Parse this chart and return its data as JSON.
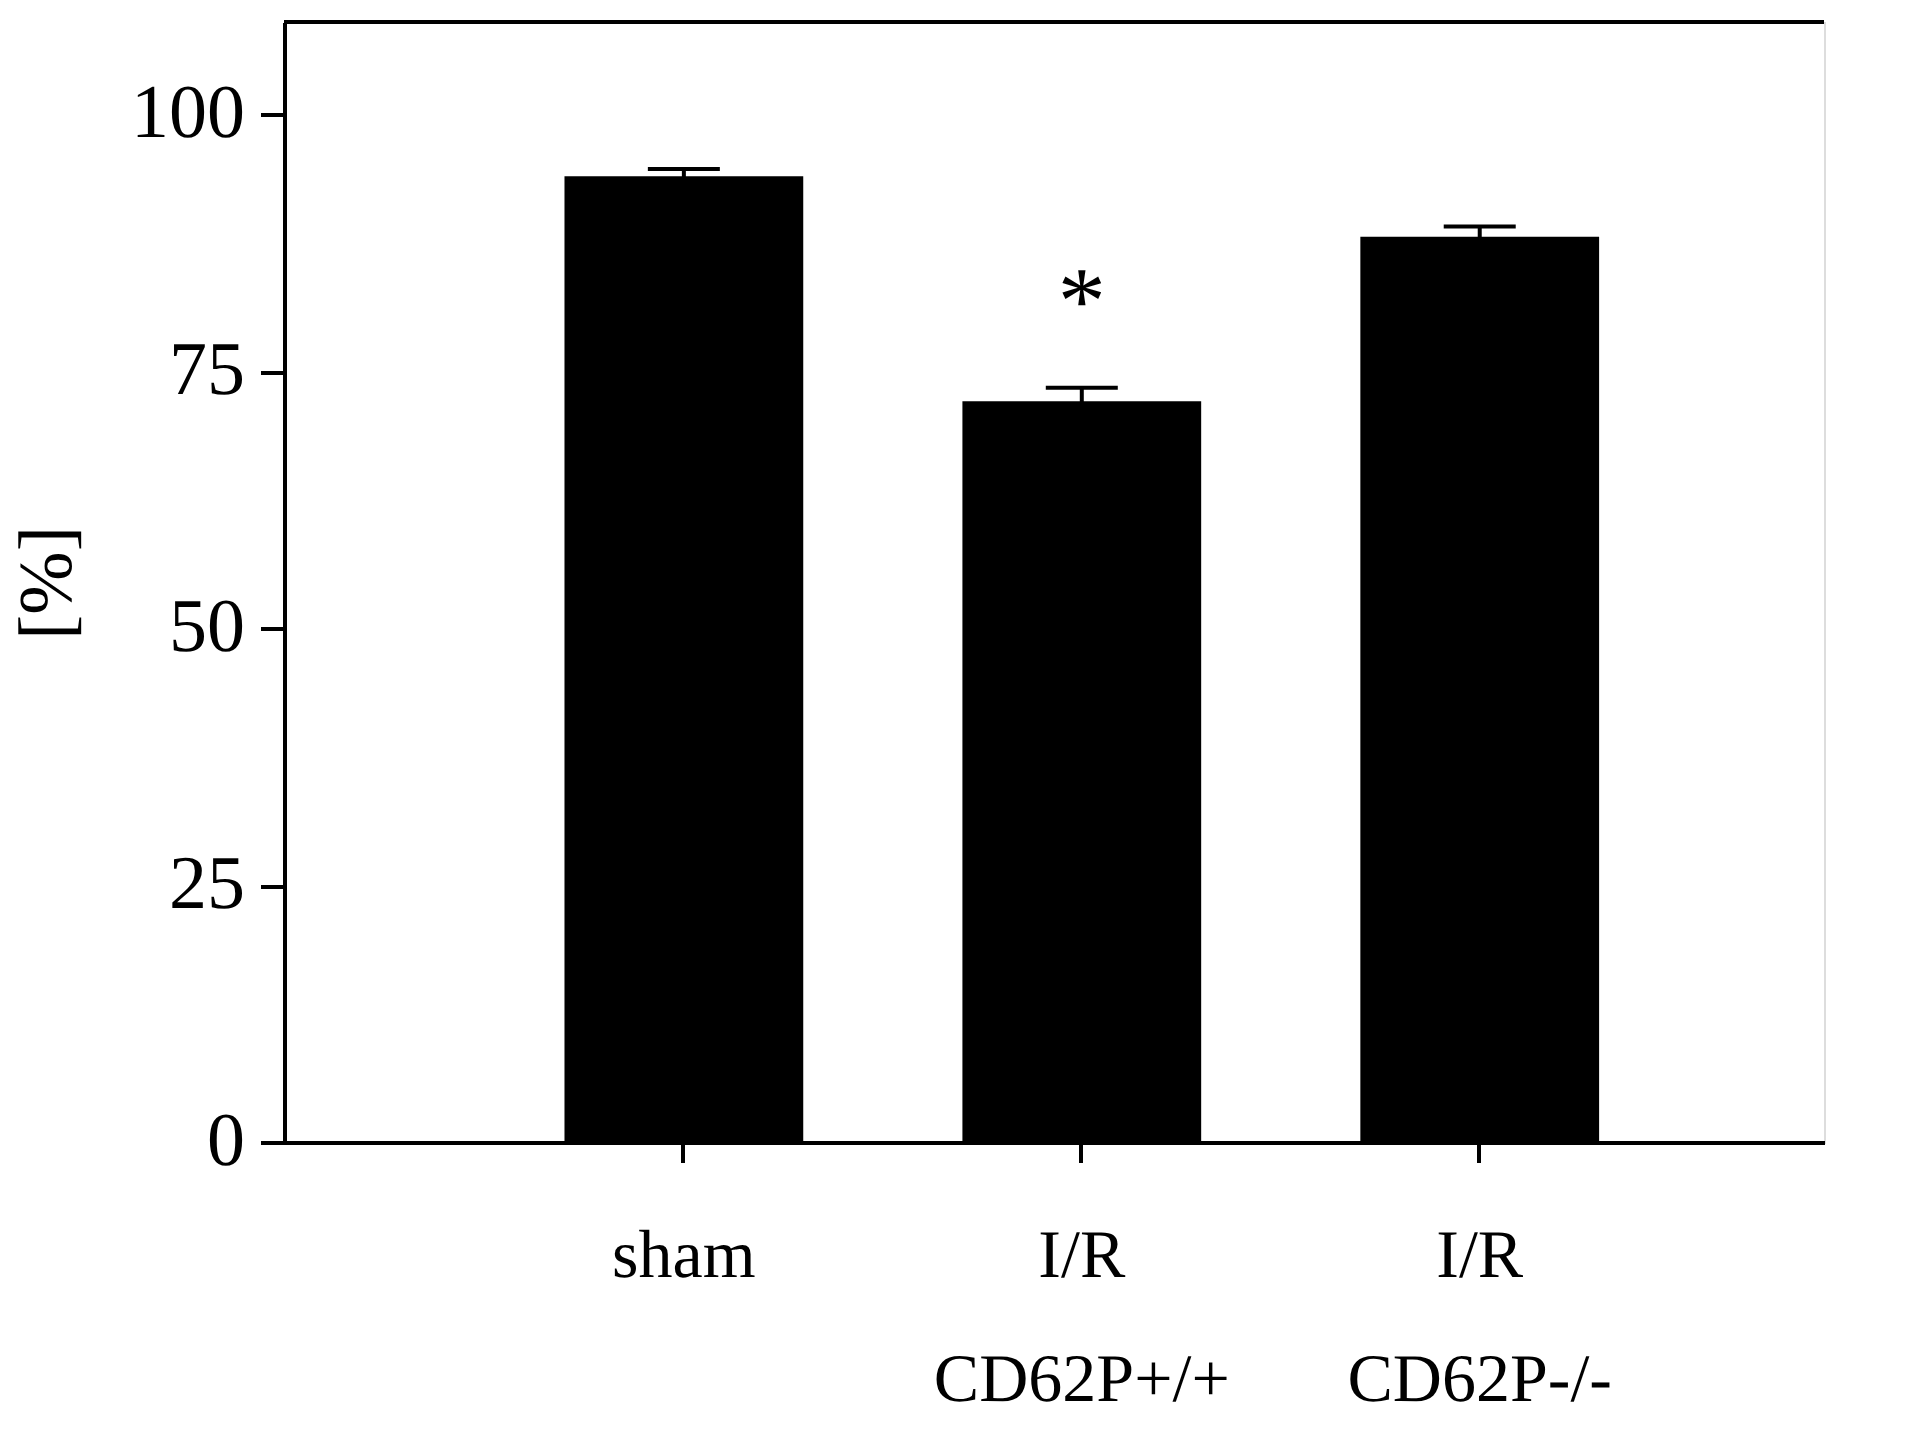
{
  "chart_data": {
    "type": "bar",
    "ylabel": "[%]",
    "categories": [
      "sham",
      "I/R\nCD62P+/+",
      "I/R\nCD62P-/-"
    ],
    "series": [
      {
        "color": "#000000",
        "values": [
          94.0,
          72.1,
          88.1
        ],
        "errors": [
          0.7,
          1.3,
          1.0
        ]
      }
    ],
    "ylim": [
      0,
      109
    ],
    "yticks": [
      0,
      25,
      50,
      75,
      100
    ],
    "grid": false,
    "annotations": [
      {
        "text": "*",
        "x": "I/R\nCD62P+/+",
        "y": 72.1
      }
    ]
  }
}
